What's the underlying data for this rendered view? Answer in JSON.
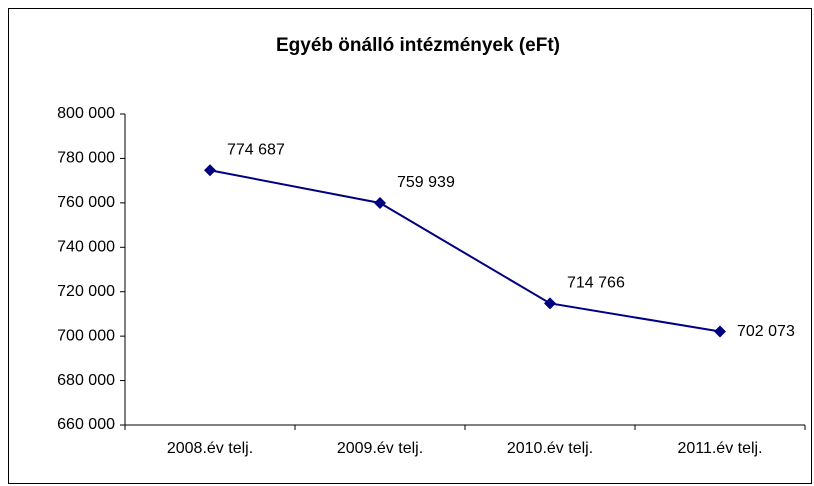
{
  "chart_data": {
    "type": "line",
    "title": "Egyéb önálló intézmények (eFt)",
    "categories": [
      "2008.év telj.",
      "2009.év telj.",
      "2010.év telj.",
      "2011.év telj."
    ],
    "series": [
      {
        "name": "Egyéb önálló intézmények",
        "color": "#000080",
        "values": [
          774687,
          759939,
          714766,
          702073
        ],
        "value_labels": [
          "774 687",
          "759 939",
          "714 766",
          "702 073"
        ]
      }
    ],
    "ylim": [
      660000,
      800000
    ],
    "yticks": [
      {
        "value": 660000,
        "label": "660 000"
      },
      {
        "value": 680000,
        "label": "680 000"
      },
      {
        "value": 700000,
        "label": "700 000"
      },
      {
        "value": 720000,
        "label": "720 000"
      },
      {
        "value": 740000,
        "label": "740 000"
      },
      {
        "value": 760000,
        "label": "760 000"
      },
      {
        "value": 780000,
        "label": "780 000"
      },
      {
        "value": 800000,
        "label": "800 000"
      }
    ],
    "grid": false,
    "legend": false
  }
}
